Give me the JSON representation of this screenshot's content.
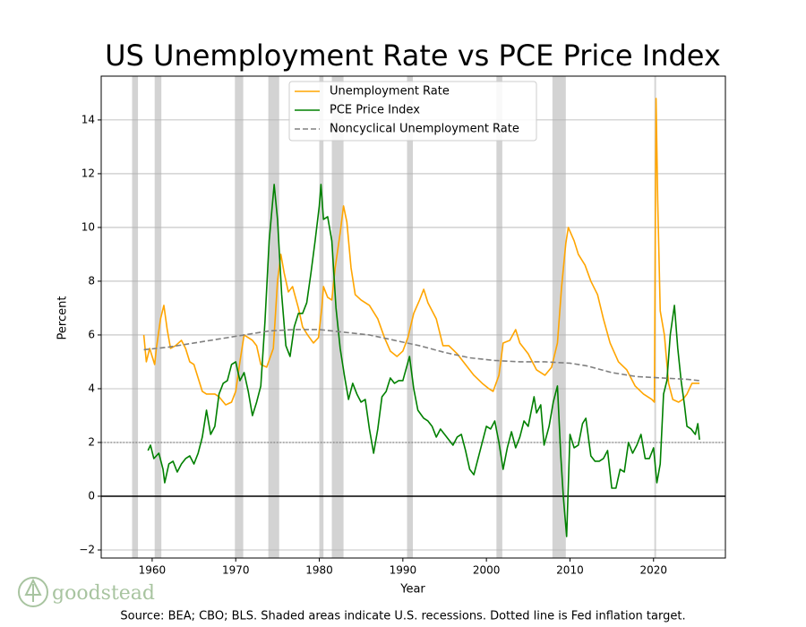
{
  "chart_data": {
    "type": "line",
    "title": "US Unemployment Rate vs PCE Price Index",
    "x_label": "Year",
    "y_label": "Percent",
    "source": "Source: BEA; CBO; BLS. Shaded areas indicate U.S. recessions. Dotted line is Fed inflation target.",
    "logo_text": "goodstead",
    "xlim": [
      1953.9,
      2028.6
    ],
    "ylim": [
      -2.3,
      15.63
    ],
    "xticks": [
      1960,
      1970,
      1980,
      1990,
      2000,
      2010,
      2020
    ],
    "yticks": [
      {
        "value": -2,
        "label": "−2"
      },
      0,
      2,
      4,
      6,
      8,
      10,
      12,
      14
    ],
    "grid": true,
    "legend_position": "upper center",
    "recession_color": "#d3d3d3",
    "recessions": [
      [
        1957.6,
        1958.3
      ],
      [
        1960.3,
        1961.1
      ],
      [
        1969.9,
        1970.9
      ],
      [
        1973.9,
        1975.2
      ],
      [
        1980.0,
        1980.5
      ],
      [
        1981.5,
        1982.9
      ],
      [
        1990.5,
        1991.2
      ],
      [
        2001.2,
        2001.9
      ],
      [
        2007.9,
        2009.5
      ],
      [
        2020.1,
        2020.3
      ]
    ],
    "reference_lines": [
      {
        "value": 0,
        "color": "#000000",
        "style": "solid"
      },
      {
        "value": 2,
        "color": "#808080",
        "style": "dotted"
      }
    ],
    "series": [
      {
        "name": "Unemployment Rate",
        "color": "#ffa500",
        "style": "solid",
        "x": [
          1959.0,
          1959.3,
          1959.7,
          1960.0,
          1960.3,
          1960.5,
          1961.0,
          1961.4,
          1961.8,
          1962.2,
          1962.8,
          1963.5,
          1964.0,
          1964.5,
          1965.0,
          1965.5,
          1966.0,
          1966.5,
          1967.5,
          1968.0,
          1968.8,
          1969.5,
          1970.0,
          1970.5,
          1971.0,
          1971.5,
          1972.0,
          1972.5,
          1973.0,
          1973.7,
          1974.5,
          1975.0,
          1975.4,
          1975.8,
          1976.3,
          1976.8,
          1977.5,
          1978.0,
          1978.6,
          1979.3,
          1979.9,
          1980.3,
          1980.5,
          1981.0,
          1981.5,
          1981.9,
          1982.5,
          1982.9,
          1983.3,
          1983.8,
          1984.3,
          1985.0,
          1986.0,
          1987.0,
          1987.8,
          1988.5,
          1989.3,
          1990.0,
          1990.6,
          1991.3,
          1992.0,
          1992.5,
          1993.0,
          1994.0,
          1994.8,
          1995.5,
          1996.5,
          1997.5,
          1998.5,
          1999.5,
          2000.3,
          2000.8,
          2001.5,
          2002.0,
          2002.8,
          2003.5,
          2004.0,
          2005.0,
          2006.0,
          2007.0,
          2007.8,
          2008.5,
          2009.0,
          2009.5,
          2009.8,
          2010.5,
          2011.0,
          2011.8,
          2012.5,
          2013.3,
          2014.0,
          2014.8,
          2015.8,
          2016.8,
          2017.8,
          2018.8,
          2019.8,
          2020.1,
          2020.3,
          2020.5,
          2020.8,
          2021.3,
          2021.8,
          2022.3,
          2023.0,
          2023.5,
          2024.0,
          2024.6,
          2025.5
        ],
        "values": [
          6.0,
          5.0,
          5.5,
          5.2,
          4.9,
          5.5,
          6.6,
          7.1,
          6.2,
          5.5,
          5.6,
          5.8,
          5.5,
          5.0,
          4.9,
          4.4,
          3.9,
          3.8,
          3.8,
          3.7,
          3.4,
          3.5,
          3.9,
          5.0,
          6.0,
          5.9,
          5.8,
          5.6,
          4.9,
          4.8,
          5.5,
          8.0,
          9.0,
          8.3,
          7.6,
          7.8,
          7.0,
          6.3,
          6.0,
          5.7,
          5.9,
          7.0,
          7.8,
          7.4,
          7.3,
          8.5,
          9.8,
          10.8,
          10.2,
          8.5,
          7.5,
          7.3,
          7.1,
          6.6,
          5.9,
          5.4,
          5.2,
          5.4,
          5.9,
          6.8,
          7.3,
          7.7,
          7.2,
          6.6,
          5.6,
          5.6,
          5.3,
          4.9,
          4.5,
          4.2,
          4.0,
          3.9,
          4.5,
          5.7,
          5.8,
          6.2,
          5.7,
          5.3,
          4.7,
          4.5,
          4.8,
          5.7,
          7.8,
          9.4,
          10.0,
          9.5,
          9.0,
          8.6,
          8.0,
          7.5,
          6.6,
          5.7,
          5.0,
          4.7,
          4.1,
          3.8,
          3.6,
          3.5,
          14.8,
          11.0,
          6.9,
          6.0,
          4.2,
          3.6,
          3.5,
          3.6,
          3.8,
          4.2,
          4.2
        ]
      },
      {
        "name": "PCE Price Index",
        "color": "#008000",
        "style": "solid",
        "x": [
          1959.5,
          1959.8,
          1960.2,
          1960.8,
          1961.3,
          1961.5,
          1962.0,
          1962.5,
          1963.0,
          1963.5,
          1964.0,
          1964.5,
          1965.0,
          1965.5,
          1966.0,
          1966.5,
          1967.0,
          1967.5,
          1968.0,
          1968.5,
          1969.0,
          1969.5,
          1970.0,
          1970.5,
          1971.0,
          1971.5,
          1972.0,
          1972.5,
          1973.0,
          1973.5,
          1974.0,
          1974.6,
          1975.0,
          1975.5,
          1976.0,
          1976.5,
          1977.0,
          1977.5,
          1978.0,
          1978.5,
          1979.0,
          1979.5,
          1980.0,
          1980.2,
          1980.5,
          1981.0,
          1981.5,
          1982.0,
          1982.5,
          1983.0,
          1983.5,
          1984.0,
          1984.5,
          1985.0,
          1985.5,
          1986.0,
          1986.5,
          1987.0,
          1987.5,
          1988.0,
          1988.5,
          1989.0,
          1989.5,
          1990.0,
          1990.8,
          1991.3,
          1991.8,
          1992.5,
          1993.0,
          1993.5,
          1994.0,
          1994.5,
          1995.0,
          1995.5,
          1996.0,
          1996.5,
          1997.0,
          1997.5,
          1998.0,
          1998.5,
          1999.0,
          1999.5,
          2000.0,
          2000.5,
          2001.0,
          2001.5,
          2002.0,
          2002.5,
          2003.0,
          2003.5,
          2004.0,
          2004.5,
          2005.0,
          2005.7,
          2006.0,
          2006.5,
          2006.9,
          2007.5,
          2008.0,
          2008.5,
          2008.9,
          2009.2,
          2009.6,
          2010.0,
          2010.5,
          2011.0,
          2011.5,
          2011.9,
          2012.5,
          2013.0,
          2013.5,
          2014.0,
          2014.5,
          2015.0,
          2015.5,
          2016.0,
          2016.5,
          2017.0,
          2017.5,
          2018.0,
          2018.5,
          2019.0,
          2019.5,
          2020.0,
          2020.4,
          2020.8,
          2021.2,
          2021.6,
          2022.0,
          2022.5,
          2022.9,
          2023.3,
          2023.7,
          2024.0,
          2024.5,
          2025.0,
          2025.3,
          2025.5
        ],
        "values": [
          1.7,
          1.9,
          1.4,
          1.6,
          1.0,
          0.5,
          1.2,
          1.3,
          0.9,
          1.2,
          1.4,
          1.5,
          1.2,
          1.6,
          2.2,
          3.2,
          2.3,
          2.6,
          3.8,
          4.2,
          4.3,
          4.9,
          5.0,
          4.3,
          4.6,
          3.9,
          3.0,
          3.5,
          4.1,
          6.5,
          9.5,
          11.6,
          10.3,
          7.5,
          5.6,
          5.2,
          6.3,
          6.8,
          6.8,
          7.2,
          8.3,
          9.5,
          10.8,
          11.6,
          10.3,
          10.4,
          9.5,
          7.0,
          5.5,
          4.5,
          3.6,
          4.2,
          3.8,
          3.5,
          3.6,
          2.5,
          1.6,
          2.5,
          3.7,
          3.9,
          4.4,
          4.2,
          4.3,
          4.3,
          5.2,
          4.0,
          3.2,
          2.9,
          2.8,
          2.6,
          2.2,
          2.5,
          2.3,
          2.1,
          1.9,
          2.2,
          2.3,
          1.7,
          1.0,
          0.8,
          1.4,
          2.0,
          2.6,
          2.5,
          2.8,
          2.0,
          1.0,
          1.8,
          2.4,
          1.8,
          2.2,
          2.8,
          2.6,
          3.7,
          3.1,
          3.4,
          1.9,
          2.6,
          3.5,
          4.1,
          1.5,
          0.0,
          -1.5,
          2.3,
          1.8,
          1.9,
          2.7,
          2.9,
          1.5,
          1.3,
          1.3,
          1.4,
          1.7,
          0.3,
          0.3,
          1.0,
          0.9,
          2.0,
          1.6,
          1.9,
          2.3,
          1.4,
          1.4,
          1.8,
          0.5,
          1.2,
          3.8,
          4.3,
          6.0,
          7.1,
          5.5,
          4.3,
          3.4,
          2.6,
          2.5,
          2.3,
          2.7,
          2.1
        ]
      },
      {
        "name": "Noncyclical Unemployment Rate",
        "color": "#808080",
        "style": "dashed",
        "x": [
          1959,
          1962,
          1965,
          1968,
          1971,
          1974,
          1977,
          1980,
          1983,
          1986,
          1989,
          1992,
          1995,
          1998,
          2001,
          2004,
          2007,
          2010,
          2012,
          2015,
          2018,
          2021,
          2024,
          2025.5
        ],
        "values": [
          5.45,
          5.55,
          5.7,
          5.85,
          6.0,
          6.15,
          6.2,
          6.2,
          6.1,
          6.0,
          5.8,
          5.6,
          5.35,
          5.15,
          5.05,
          5.0,
          5.0,
          4.95,
          4.85,
          4.6,
          4.45,
          4.4,
          4.35,
          4.3
        ]
      }
    ]
  }
}
